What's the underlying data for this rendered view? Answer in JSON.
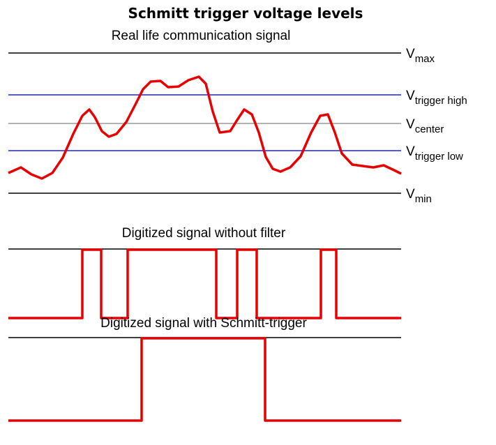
{
  "title": "Schmitt trigger voltage levels",
  "panels": [
    {
      "caption": "Real life communication signal"
    },
    {
      "caption": "Digitized signal without filter"
    },
    {
      "caption": "Digitized signal with Schmitt-trigger"
    }
  ],
  "levels": [
    {
      "symbol": "V",
      "subscript": "max"
    },
    {
      "symbol": "V",
      "subscript": "trigger high"
    },
    {
      "symbol": "V",
      "subscript": "center"
    },
    {
      "symbol": "V",
      "subscript": "trigger low"
    },
    {
      "symbol": "V",
      "subscript": "min"
    }
  ]
}
